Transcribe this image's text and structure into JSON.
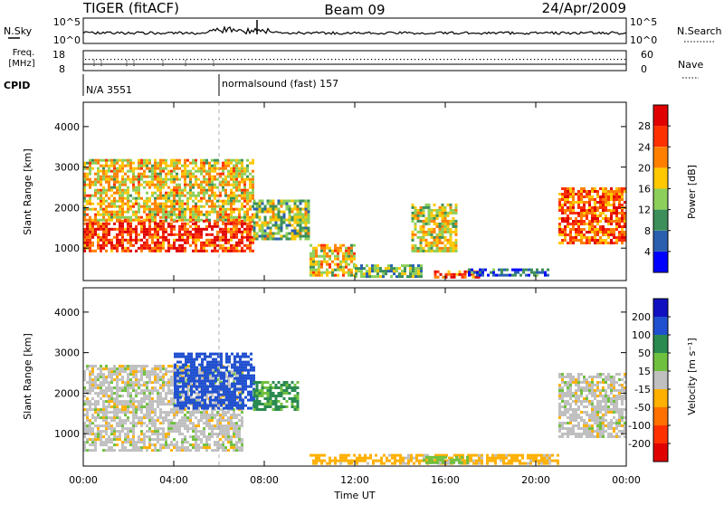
{
  "header": {
    "radar": "TIGER (fitACF)",
    "beam": "Beam 09",
    "date": "24/Apr/2009"
  },
  "nsky": {
    "label": "N.Sky",
    "ticks": [
      "10^5",
      "10^0"
    ],
    "right_label": "N.Search",
    "right_ticks": [
      "10^5",
      "10^0"
    ]
  },
  "freq": {
    "label": "Freq.",
    "unit": "[MHz]",
    "ticks": [
      "18",
      "8"
    ],
    "right_label": "Nave",
    "right_ticks": [
      "60",
      "0"
    ]
  },
  "cpid": {
    "label": "CPID",
    "segments": [
      {
        "text": "N/A 3551",
        "start_hour": 0
      },
      {
        "text": "normalsound (fast) 157",
        "start_hour": 6
      }
    ]
  },
  "time_axis": {
    "label": "Time UT",
    "ticks": [
      "00:00",
      "04:00",
      "08:00",
      "12:00",
      "16:00",
      "20:00",
      "00:00"
    ]
  },
  "power_panel": {
    "ylabel": "Slant Range [km]",
    "yticks": [
      "1000",
      "2000",
      "3000",
      "4000"
    ],
    "colorbar": {
      "label": "Power [dB]",
      "ticks": [
        "4",
        "8",
        "12",
        "16",
        "20",
        "24",
        "28"
      ],
      "colors": [
        "#0000ff",
        "#2a5fb0",
        "#3c8f5a",
        "#8ccf5a",
        "#ffc800",
        "#ff8000",
        "#ff3000",
        "#e00000"
      ]
    }
  },
  "velocity_panel": {
    "ylabel": "Slant Range [km]",
    "yticks": [
      "1000",
      "2000",
      "3000",
      "4000"
    ],
    "colorbar": {
      "label": "Velocity [m s⁻¹]",
      "ticks": [
        "200",
        "100",
        "50",
        "15",
        "-15",
        "-50",
        "-100",
        "-200"
      ],
      "colors": [
        "#1010c0",
        "#2050d0",
        "#2a8a50",
        "#70c040",
        "#c0c0c0",
        "#ffb000",
        "#ff7000",
        "#ff3000",
        "#e00000"
      ]
    }
  },
  "chart_data": {
    "type": "heatmap",
    "x_unit": "hours UT",
    "xlim": [
      0,
      24
    ],
    "ylim": [
      200,
      4600
    ],
    "power_regions": [
      {
        "x": [
          0,
          7.5
        ],
        "y": [
          900,
          1700
        ],
        "value": 26
      },
      {
        "x": [
          0,
          7.5
        ],
        "y": [
          1700,
          3200
        ],
        "value": 18
      },
      {
        "x": [
          7.5,
          10
        ],
        "y": [
          1200,
          2200
        ],
        "value": 14
      },
      {
        "x": [
          10,
          12
        ],
        "y": [
          300,
          1100
        ],
        "value": 18
      },
      {
        "x": [
          12,
          15
        ],
        "y": [
          300,
          600
        ],
        "value": 12
      },
      {
        "x": [
          14.5,
          16.5
        ],
        "y": [
          900,
          2100
        ],
        "value": 16
      },
      {
        "x": [
          15.5,
          17.5
        ],
        "y": [
          250,
          450
        ],
        "value": 26
      },
      {
        "x": [
          17,
          20.5
        ],
        "y": [
          300,
          500
        ],
        "value": 6
      },
      {
        "x": [
          21,
          24
        ],
        "y": [
          1100,
          2500
        ],
        "value": 24
      }
    ],
    "velocity_regions": [
      {
        "x": [
          0,
          7
        ],
        "y": [
          600,
          2700
        ],
        "value": 0
      },
      {
        "x": [
          4,
          7.5
        ],
        "y": [
          1600,
          3000
        ],
        "value": 120
      },
      {
        "x": [
          7.5,
          9.5
        ],
        "y": [
          1600,
          2300
        ],
        "value": 60
      },
      {
        "x": [
          10,
          21
        ],
        "y": [
          250,
          500
        ],
        "value": -30
      },
      {
        "x": [
          15,
          17
        ],
        "y": [
          250,
          450
        ],
        "value": 30
      },
      {
        "x": [
          21,
          24
        ],
        "y": [
          900,
          2500
        ],
        "value": 0
      }
    ]
  }
}
